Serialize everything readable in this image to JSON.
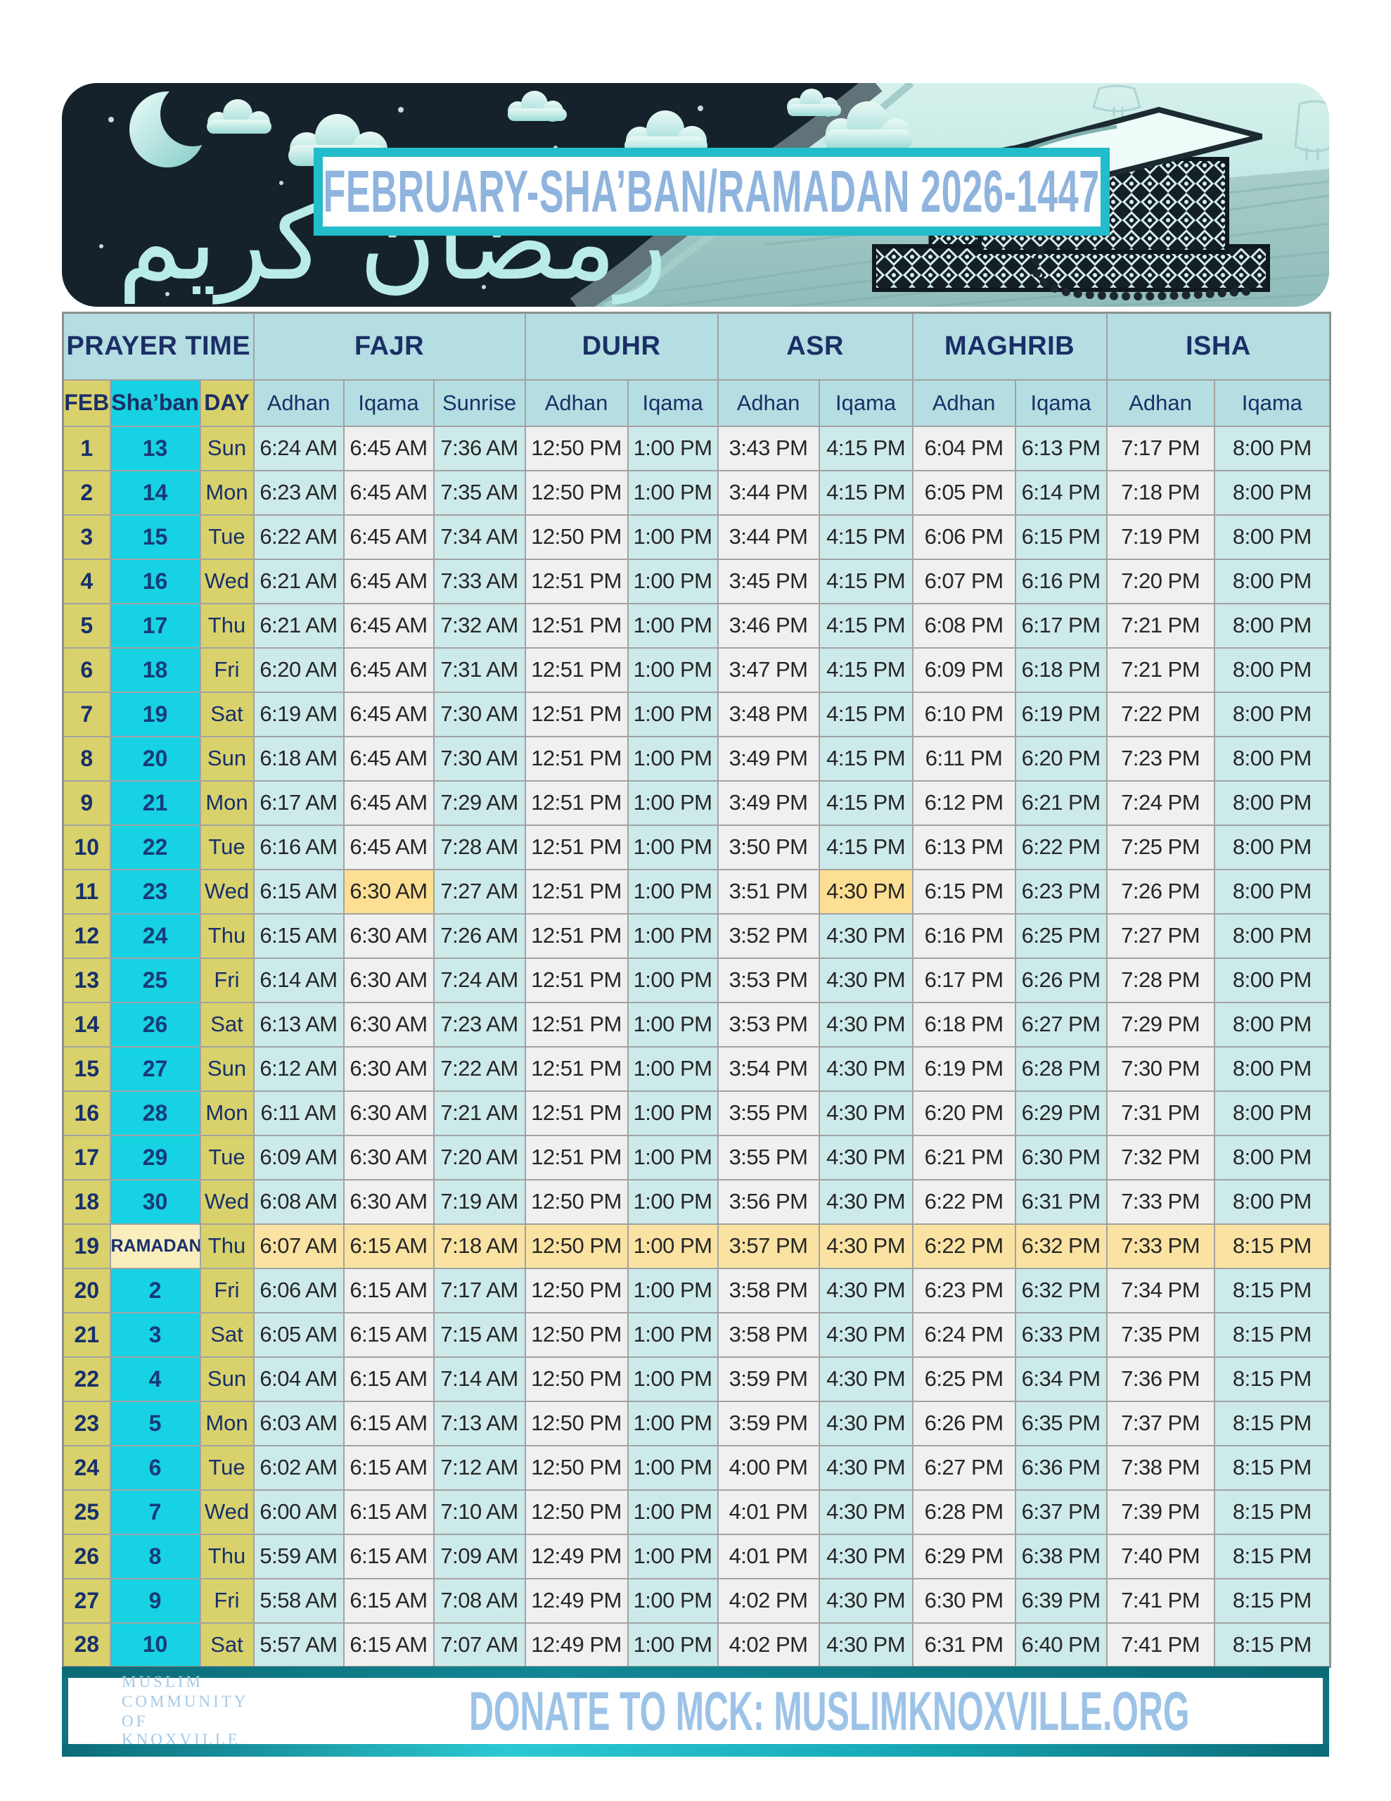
{
  "banner": {
    "title": "FEBRUARY-SHA’BAN/RAMADAN 2026-1447",
    "calligraphy": "رمضان كريم"
  },
  "table": {
    "group_headers": [
      {
        "label": "PRAYER TIME",
        "span": 3
      },
      {
        "label": "FAJR",
        "span": 3
      },
      {
        "label": "DUHR",
        "span": 2
      },
      {
        "label": "ASR",
        "span": 2
      },
      {
        "label": "MAGHRIB",
        "span": 2
      },
      {
        "label": "ISHA",
        "span": 2
      }
    ],
    "sub_headers": [
      "FEB",
      "Sha’ban",
      "DAY",
      "Adhan",
      "Iqama",
      "Sunrise",
      "Adhan",
      "Iqama",
      "Adhan",
      "Iqama",
      "Adhan",
      "Iqama",
      "Adhan",
      "Iqama"
    ],
    "time_column_keys": [
      "fajr-adhan",
      "fajr-iqama",
      "sunrise",
      "duhr-adhan",
      "duhr-iqama",
      "asr-adhan",
      "asr-iqama",
      "maghrib-adhan",
      "maghrib-iqama",
      "isha-adhan",
      "isha-iqama"
    ],
    "rows": [
      {
        "feb": "1",
        "shaban": "13",
        "day": "Sun",
        "times": [
          "6:24 AM",
          "6:45 AM",
          "7:36 AM",
          "12:50 PM",
          "1:00 PM",
          "3:43 PM",
          "4:15 PM",
          "6:04 PM",
          "6:13 PM",
          "7:17 PM",
          "8:00 PM"
        ]
      },
      {
        "feb": "2",
        "shaban": "14",
        "day": "Mon",
        "times": [
          "6:23 AM",
          "6:45 AM",
          "7:35 AM",
          "12:50 PM",
          "1:00 PM",
          "3:44 PM",
          "4:15 PM",
          "6:05 PM",
          "6:14 PM",
          "7:18 PM",
          "8:00 PM"
        ]
      },
      {
        "feb": "3",
        "shaban": "15",
        "day": "Tue",
        "times": [
          "6:22 AM",
          "6:45 AM",
          "7:34 AM",
          "12:50 PM",
          "1:00 PM",
          "3:44 PM",
          "4:15 PM",
          "6:06 PM",
          "6:15 PM",
          "7:19 PM",
          "8:00 PM"
        ]
      },
      {
        "feb": "4",
        "shaban": "16",
        "day": "Wed",
        "times": [
          "6:21 AM",
          "6:45 AM",
          "7:33 AM",
          "12:51 PM",
          "1:00 PM",
          "3:45 PM",
          "4:15 PM",
          "6:07 PM",
          "6:16 PM",
          "7:20 PM",
          "8:00 PM"
        ]
      },
      {
        "feb": "5",
        "shaban": "17",
        "day": "Thu",
        "times": [
          "6:21 AM",
          "6:45 AM",
          "7:32 AM",
          "12:51 PM",
          "1:00 PM",
          "3:46 PM",
          "4:15 PM",
          "6:08 PM",
          "6:17 PM",
          "7:21 PM",
          "8:00 PM"
        ]
      },
      {
        "feb": "6",
        "shaban": "18",
        "day": "Fri",
        "times": [
          "6:20 AM",
          "6:45 AM",
          "7:31 AM",
          "12:51 PM",
          "1:00 PM",
          "3:47 PM",
          "4:15 PM",
          "6:09 PM",
          "6:18 PM",
          "7:21 PM",
          "8:00 PM"
        ]
      },
      {
        "feb": "7",
        "shaban": "19",
        "day": "Sat",
        "times": [
          "6:19 AM",
          "6:45 AM",
          "7:30 AM",
          "12:51 PM",
          "1:00 PM",
          "3:48 PM",
          "4:15 PM",
          "6:10 PM",
          "6:19 PM",
          "7:22 PM",
          "8:00 PM"
        ]
      },
      {
        "feb": "8",
        "shaban": "20",
        "day": "Sun",
        "times": [
          "6:18 AM",
          "6:45 AM",
          "7:30 AM",
          "12:51 PM",
          "1:00 PM",
          "3:49 PM",
          "4:15 PM",
          "6:11 PM",
          "6:20 PM",
          "7:23 PM",
          "8:00 PM"
        ]
      },
      {
        "feb": "9",
        "shaban": "21",
        "day": "Mon",
        "times": [
          "6:17 AM",
          "6:45 AM",
          "7:29 AM",
          "12:51 PM",
          "1:00 PM",
          "3:49 PM",
          "4:15 PM",
          "6:12 PM",
          "6:21 PM",
          "7:24 PM",
          "8:00 PM"
        ]
      },
      {
        "feb": "10",
        "shaban": "22",
        "day": "Tue",
        "times": [
          "6:16 AM",
          "6:45 AM",
          "7:28 AM",
          "12:51 PM",
          "1:00 PM",
          "3:50 PM",
          "4:15 PM",
          "6:13 PM",
          "6:22 PM",
          "7:25 PM",
          "8:00 PM"
        ]
      },
      {
        "feb": "11",
        "shaban": "23",
        "day": "Wed",
        "hl": [
          1,
          6
        ],
        "times": [
          "6:15 AM",
          "6:30 AM",
          "7:27 AM",
          "12:51 PM",
          "1:00 PM",
          "3:51 PM",
          "4:30 PM",
          "6:15 PM",
          "6:23 PM",
          "7:26 PM",
          "8:00 PM"
        ]
      },
      {
        "feb": "12",
        "shaban": "24",
        "day": "Thu",
        "times": [
          "6:15 AM",
          "6:30 AM",
          "7:26 AM",
          "12:51 PM",
          "1:00 PM",
          "3:52 PM",
          "4:30 PM",
          "6:16 PM",
          "6:25 PM",
          "7:27 PM",
          "8:00 PM"
        ]
      },
      {
        "feb": "13",
        "shaban": "25",
        "day": "Fri",
        "times": [
          "6:14 AM",
          "6:30 AM",
          "7:24 AM",
          "12:51 PM",
          "1:00 PM",
          "3:53 PM",
          "4:30 PM",
          "6:17 PM",
          "6:26 PM",
          "7:28 PM",
          "8:00 PM"
        ]
      },
      {
        "feb": "14",
        "shaban": "26",
        "day": "Sat",
        "times": [
          "6:13 AM",
          "6:30 AM",
          "7:23 AM",
          "12:51 PM",
          "1:00 PM",
          "3:53 PM",
          "4:30 PM",
          "6:18 PM",
          "6:27 PM",
          "7:29 PM",
          "8:00 PM"
        ]
      },
      {
        "feb": "15",
        "shaban": "27",
        "day": "Sun",
        "times": [
          "6:12 AM",
          "6:30 AM",
          "7:22 AM",
          "12:51 PM",
          "1:00 PM",
          "3:54 PM",
          "4:30 PM",
          "6:19 PM",
          "6:28 PM",
          "7:30 PM",
          "8:00 PM"
        ]
      },
      {
        "feb": "16",
        "shaban": "28",
        "day": "Mon",
        "times": [
          "6:11 AM",
          "6:30 AM",
          "7:21 AM",
          "12:51 PM",
          "1:00 PM",
          "3:55 PM",
          "4:30 PM",
          "6:20 PM",
          "6:29 PM",
          "7:31 PM",
          "8:00 PM"
        ]
      },
      {
        "feb": "17",
        "shaban": "29",
        "day": "Tue",
        "times": [
          "6:09 AM",
          "6:30 AM",
          "7:20 AM",
          "12:51 PM",
          "1:00 PM",
          "3:55 PM",
          "4:30 PM",
          "6:21 PM",
          "6:30 PM",
          "7:32 PM",
          "8:00 PM"
        ]
      },
      {
        "feb": "18",
        "shaban": "30",
        "day": "Wed",
        "times": [
          "6:08 AM",
          "6:30 AM",
          "7:19 AM",
          "12:50 PM",
          "1:00 PM",
          "3:56 PM",
          "4:30 PM",
          "6:22 PM",
          "6:31 PM",
          "7:33 PM",
          "8:00 PM"
        ]
      },
      {
        "feb": "19",
        "shaban": "RAMADAN",
        "day": "Thu",
        "ramadan": true,
        "times": [
          "6:07 AM",
          "6:15 AM",
          "7:18 AM",
          "12:50 PM",
          "1:00 PM",
          "3:57 PM",
          "4:30 PM",
          "6:22 PM",
          "6:32 PM",
          "7:33 PM",
          "8:15 PM"
        ]
      },
      {
        "feb": "20",
        "shaban": "2",
        "day": "Fri",
        "times": [
          "6:06 AM",
          "6:15 AM",
          "7:17 AM",
          "12:50 PM",
          "1:00 PM",
          "3:58 PM",
          "4:30 PM",
          "6:23 PM",
          "6:32 PM",
          "7:34 PM",
          "8:15 PM"
        ]
      },
      {
        "feb": "21",
        "shaban": "3",
        "day": "Sat",
        "times": [
          "6:05 AM",
          "6:15 AM",
          "7:15 AM",
          "12:50 PM",
          "1:00 PM",
          "3:58 PM",
          "4:30 PM",
          "6:24 PM",
          "6:33 PM",
          "7:35 PM",
          "8:15 PM"
        ]
      },
      {
        "feb": "22",
        "shaban": "4",
        "day": "Sun",
        "times": [
          "6:04 AM",
          "6:15 AM",
          "7:14 AM",
          "12:50 PM",
          "1:00 PM",
          "3:59 PM",
          "4:30 PM",
          "6:25 PM",
          "6:34 PM",
          "7:36 PM",
          "8:15 PM"
        ]
      },
      {
        "feb": "23",
        "shaban": "5",
        "day": "Mon",
        "times": [
          "6:03 AM",
          "6:15 AM",
          "7:13 AM",
          "12:50 PM",
          "1:00 PM",
          "3:59 PM",
          "4:30 PM",
          "6:26 PM",
          "6:35 PM",
          "7:37 PM",
          "8:15 PM"
        ]
      },
      {
        "feb": "24",
        "shaban": "6",
        "day": "Tue",
        "times": [
          "6:02 AM",
          "6:15 AM",
          "7:12 AM",
          "12:50 PM",
          "1:00 PM",
          "4:00 PM",
          "4:30 PM",
          "6:27 PM",
          "6:36 PM",
          "7:38 PM",
          "8:15 PM"
        ]
      },
      {
        "feb": "25",
        "shaban": "7",
        "day": "Wed",
        "times": [
          "6:00 AM",
          "6:15 AM",
          "7:10 AM",
          "12:50 PM",
          "1:00 PM",
          "4:01 PM",
          "4:30 PM",
          "6:28 PM",
          "6:37 PM",
          "7:39 PM",
          "8:15 PM"
        ]
      },
      {
        "feb": "26",
        "shaban": "8",
        "day": "Thu",
        "times": [
          "5:59 AM",
          "6:15 AM",
          "7:09 AM",
          "12:49 PM",
          "1:00 PM",
          "4:01 PM",
          "4:30 PM",
          "6:29 PM",
          "6:38 PM",
          "7:40 PM",
          "8:15 PM"
        ]
      },
      {
        "feb": "27",
        "shaban": "9",
        "day": "Fri",
        "times": [
          "5:58 AM",
          "6:15 AM",
          "7:08 AM",
          "12:49 PM",
          "1:00 PM",
          "4:02 PM",
          "4:30 PM",
          "6:30 PM",
          "6:39 PM",
          "7:41 PM",
          "8:15 PM"
        ]
      },
      {
        "feb": "28",
        "shaban": "10",
        "day": "Sat",
        "times": [
          "5:57 AM",
          "6:15 AM",
          "7:07 AM",
          "12:49 PM",
          "1:00 PM",
          "4:02 PM",
          "4:30 PM",
          "6:31 PM",
          "6:40 PM",
          "7:41 PM",
          "8:15 PM"
        ]
      }
    ]
  },
  "footer": {
    "logo_lines": [
      "MUSLIM",
      "COMMUNITY",
      "OF KNOXVILLE"
    ],
    "donate_text": "DONATE TO MCK: MUSLIMKNOXVILLE.ORG"
  },
  "colors": {
    "title_border": "#23bcca",
    "title_text": "#8fb4de",
    "header_bg": "#b4dee2",
    "navy": "#1b2f66",
    "column_yellow": "#d9d26c",
    "column_cyan": "#17d2e2",
    "cell_teal": "#cdeaea",
    "cell_white": "#f0f0f0",
    "highlight_yellow": "#fcdf92",
    "ramadan_row_yellow": "#fae3a2",
    "banner_night": "#16222b",
    "footer_teal": "#0d7380",
    "footer_text_blue": "#9cc3e7"
  }
}
